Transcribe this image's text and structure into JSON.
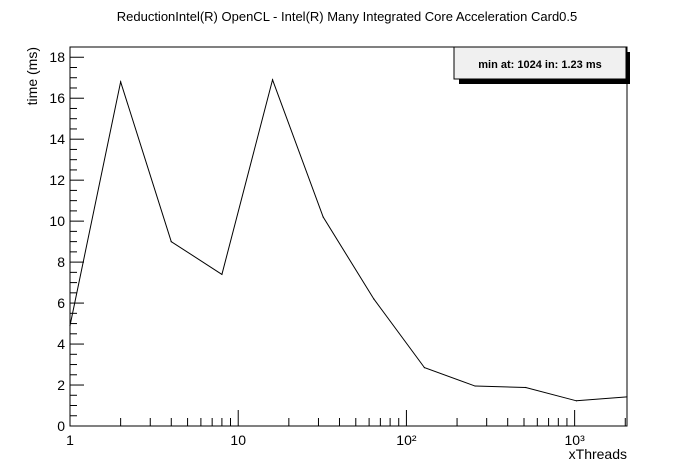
{
  "chart_data": {
    "type": "line",
    "title": "ReductionIntel(R) OpenCL - Intel(R) Many Integrated Core Acceleration Card0.5",
    "xlabel": "xThreads",
    "ylabel": "time (ms)",
    "x_scale": "log",
    "xlim": [
      1,
      2048
    ],
    "ylim": [
      0,
      18.5
    ],
    "x_tick_labels": [
      "1",
      "10",
      "10²",
      "10³"
    ],
    "x_tick_values": [
      1,
      10,
      100,
      1000
    ],
    "y_tick_values": [
      0,
      2,
      4,
      6,
      8,
      10,
      12,
      14,
      16,
      18
    ],
    "y_tick_labels": [
      "0",
      "2",
      "4",
      "6",
      "8",
      "10",
      "12",
      "14",
      "16",
      "18"
    ],
    "grid": false,
    "legend_position": "top-right",
    "annotation": "min at: 1024 in: 1.23 ms",
    "series": [
      {
        "x": [
          1,
          2,
          4,
          8,
          16,
          32,
          64,
          128,
          256,
          512,
          1024,
          2048
        ],
        "y": [
          4.9,
          16.8,
          9.0,
          7.4,
          16.9,
          10.2,
          6.2,
          2.85,
          1.95,
          1.88,
          1.23,
          1.42
        ]
      }
    ]
  }
}
